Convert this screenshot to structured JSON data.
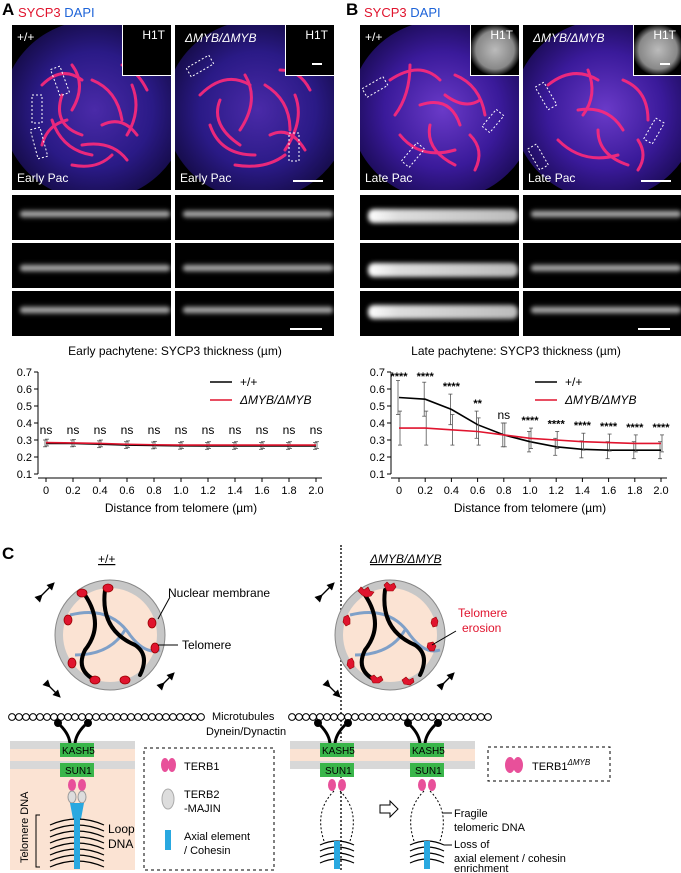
{
  "panel_letters": {
    "a": "A",
    "b": "B",
    "c": "C"
  },
  "stain_legend": {
    "sycp3": "SYCP3",
    "dapi": "DAPI"
  },
  "micrographs": {
    "a_left": {
      "genotype": "+/+",
      "stage": "Early Pac",
      "inset": "H1T"
    },
    "a_right": {
      "genotype": "ΔMYB/ΔMYB",
      "stage": "Early Pac",
      "inset": "H1T"
    },
    "b_left": {
      "genotype": "+/+",
      "stage": "Late Pac",
      "inset": "H1T"
    },
    "b_right": {
      "genotype": "ΔMYB/ΔMYB",
      "stage": "Late Pac",
      "inset": "H1T"
    }
  },
  "chart_data": [
    {
      "type": "line",
      "title": "Early pachytene: SYCP3 thickness (µm)",
      "xlabel": "Distance from telomere (µm)",
      "ylabel": "",
      "x": [
        0,
        0.2,
        0.4,
        0.6,
        0.8,
        1.0,
        1.2,
        1.4,
        1.6,
        1.8,
        2.0
      ],
      "x_tick_labels": [
        "0",
        "0.2",
        "0.4",
        "0.6",
        "0.8",
        "1.0",
        "1.2",
        "1.4",
        "1.6",
        "1.8",
        "2.0"
      ],
      "ylim": [
        0.1,
        0.7
      ],
      "y_ticks": [
        0.1,
        0.2,
        0.3,
        0.4,
        0.5,
        0.6,
        0.7
      ],
      "y_tick_labels": [
        "0.1",
        "0.2",
        "0.3",
        "0.4",
        "0.5",
        "0.6",
        "0.7"
      ],
      "series": [
        {
          "name": "+/+",
          "color": "#000000",
          "values": [
            0.28,
            0.28,
            0.275,
            0.27,
            0.268,
            0.266,
            0.265,
            0.265,
            0.265,
            0.265,
            0.265
          ],
          "err": [
            0.02,
            0.02,
            0.02,
            0.02,
            0.02,
            0.02,
            0.02,
            0.02,
            0.02,
            0.02,
            0.02
          ]
        },
        {
          "name": "ΔMYB/ΔMYB",
          "color": "#e0142e",
          "values": [
            0.285,
            0.283,
            0.28,
            0.275,
            0.272,
            0.27,
            0.27,
            0.27,
            0.27,
            0.27,
            0.27
          ],
          "err": [
            0.02,
            0.02,
            0.02,
            0.02,
            0.02,
            0.02,
            0.02,
            0.02,
            0.02,
            0.02,
            0.02
          ]
        }
      ],
      "annotations": [
        "ns",
        "ns",
        "ns",
        "ns",
        "ns",
        "ns",
        "ns",
        "ns",
        "ns",
        "ns",
        "ns"
      ],
      "legend": "top-right",
      "grid": false
    },
    {
      "type": "line",
      "title": "Late pachytene: SYCP3 thickness (µm)",
      "xlabel": "Distance from telomere (µm)",
      "ylabel": "",
      "x": [
        0,
        0.2,
        0.4,
        0.6,
        0.8,
        1.0,
        1.2,
        1.4,
        1.6,
        1.8,
        2.0
      ],
      "x_tick_labels": [
        "0",
        "0.2",
        "0.4",
        "0.6",
        "0.8",
        "1.0",
        "1.2",
        "1.4",
        "1.6",
        "1.8",
        "2.0"
      ],
      "ylim": [
        0.1,
        0.7
      ],
      "y_ticks": [
        0.1,
        0.2,
        0.3,
        0.4,
        0.5,
        0.6,
        0.7
      ],
      "y_tick_labels": [
        "0.1",
        "0.2",
        "0.3",
        "0.4",
        "0.5",
        "0.6",
        "0.7"
      ],
      "series": [
        {
          "name": "+/+",
          "color": "#000000",
          "values": [
            0.55,
            0.54,
            0.48,
            0.39,
            0.33,
            0.29,
            0.26,
            0.245,
            0.24,
            0.24,
            0.24
          ],
          "err": [
            0.1,
            0.1,
            0.09,
            0.08,
            0.07,
            0.06,
            0.05,
            0.05,
            0.05,
            0.05,
            0.05
          ]
        },
        {
          "name": "ΔMYB/ΔMYB",
          "color": "#e0142e",
          "values": [
            0.37,
            0.37,
            0.36,
            0.35,
            0.33,
            0.31,
            0.3,
            0.29,
            0.285,
            0.28,
            0.28
          ],
          "err": [
            0.1,
            0.1,
            0.09,
            0.08,
            0.07,
            0.06,
            0.05,
            0.05,
            0.05,
            0.05,
            0.05
          ]
        }
      ],
      "annotations": [
        "****",
        "****",
        "****",
        "**",
        "ns",
        "****",
        "****",
        "****",
        "****",
        "****",
        "****"
      ],
      "legend": "top-right",
      "grid": false
    }
  ],
  "diagram": {
    "left_genotype": "+/+",
    "right_genotype": "ΔMYB/ΔMYB",
    "nuclear_membrane": "Nuclear membrane",
    "telomere": "Telomere",
    "telomere_erosion_1": "Telomere",
    "telomere_erosion_2": "erosion",
    "microtubules": "Microtubules",
    "dynein": "Dynein/Dynactin",
    "kash5": "KASH5",
    "sun1": "SUN1",
    "telomere_dna": "Telomere DNA",
    "loop_1": "Loop",
    "loop_2": "DNA",
    "legend_terb1": "TERB1",
    "legend_terb2_1": "TERB2",
    "legend_terb2_2": "-MAJIN",
    "legend_axial_1": "Axial element",
    "legend_axial_2": "/ Cohesin",
    "legend_terb1_dmyb": "TERB1",
    "legend_terb1_dmyb_sup": "ΔMYB",
    "fragile_1": "Fragile",
    "fragile_2": "telomeric DNA",
    "loss_1": "Loss of",
    "loss_2": "axial element / cohesin",
    "loss_3": "enrichment"
  },
  "colors": {
    "sycp3": "#e0142e",
    "dapi": "#1d63d8",
    "kash5": "#39b54a",
    "terb1": "#e8509a",
    "axial": "#29a8e0",
    "nucleus_fill": "#fbe3d3",
    "ko_line": "#e0142e"
  }
}
